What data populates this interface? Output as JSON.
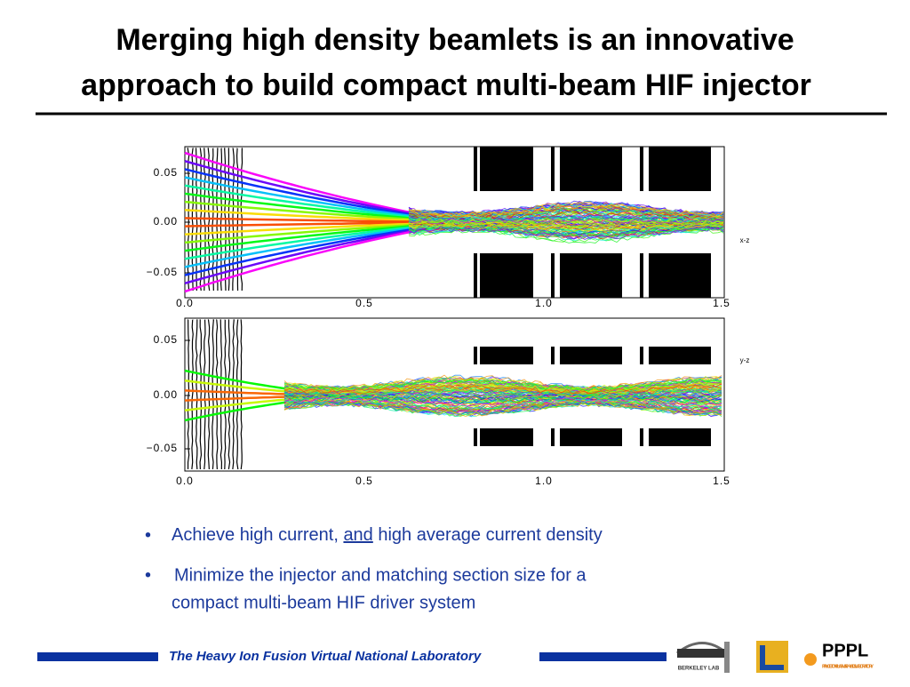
{
  "title": {
    "line1": "Merging high density beamlets is an innovative",
    "line2": "approach to build compact multi-beam HIF injector"
  },
  "plots": [
    {
      "label": "x-z",
      "yticks": [
        "0.05",
        "0.00",
        "−0.05"
      ],
      "xticks": [
        "0.0",
        "0.5",
        "1.0",
        "1.5"
      ]
    },
    {
      "label": "y-z",
      "yticks": [
        "0.05",
        "0.00",
        "−0.05"
      ],
      "xticks": [
        "0.0",
        "0.5",
        "1.0",
        "1.5"
      ]
    }
  ],
  "bullets": [
    {
      "parts": [
        "Achieve high current, ",
        "and",
        " high average current density"
      ]
    },
    {
      "parts": [
        "Minimize the injector and matching section size for a",
        "compact multi-beam HIF driver system"
      ]
    }
  ],
  "footer": {
    "text": "The Heavy Ion Fusion Virtual National Laboratory",
    "berkeley": "BERKELEY LAB",
    "pppl": "PPPL",
    "pppl_sub": "PRINCETON PLASMA PHYSICS LABORATORY"
  }
}
